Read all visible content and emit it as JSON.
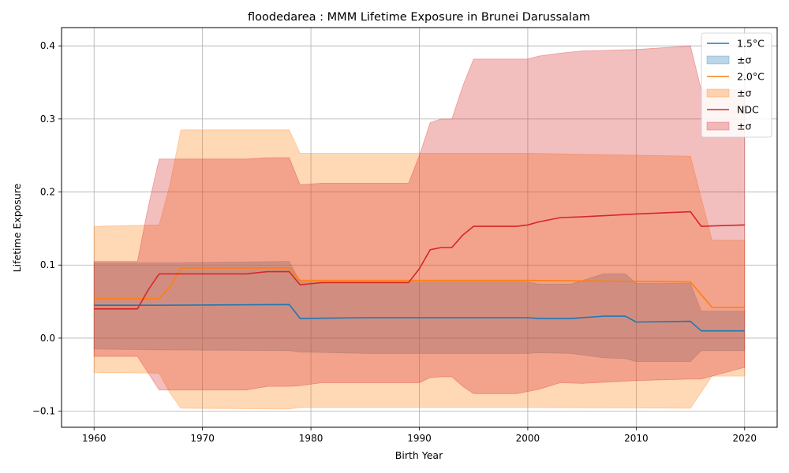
{
  "chart_data": {
    "type": "area",
    "title": "floodedarea : MMM Lifetime Exposure in Brunei Darussalam",
    "xlabel": "Birth Year",
    "ylabel": "Lifetime Exposure",
    "xlim": [
      1957,
      2023
    ],
    "ylim": [
      -0.122,
      0.425
    ],
    "xticks": [
      1960,
      1970,
      1980,
      1990,
      2000,
      2010,
      2020
    ],
    "yticks": [
      -0.1,
      0.0,
      0.1,
      0.2,
      0.3,
      0.4
    ],
    "xtick_labels": [
      "1960",
      "1970",
      "1980",
      "1990",
      "2000",
      "2010",
      "2020"
    ],
    "ytick_labels": [
      "−0.1",
      "0.0",
      "0.1",
      "0.2",
      "0.3",
      "0.4"
    ],
    "grid": true,
    "legend_position": "top-right",
    "series": [
      {
        "name": "1.5°C",
        "band_label": "±σ",
        "color": "#1f77b4",
        "x": [
          1960,
          1966,
          1978,
          1979,
          1985,
          2000,
          2001,
          2004,
          2007,
          2009,
          2010,
          2015,
          2016,
          2020
        ],
        "y": [
          0.045,
          0.045,
          0.046,
          0.027,
          0.028,
          0.028,
          0.027,
          0.027,
          0.03,
          0.03,
          0.022,
          0.023,
          0.01,
          0.01
        ],
        "upper": [
          0.103,
          0.103,
          0.105,
          0.077,
          0.077,
          0.077,
          0.074,
          0.074,
          0.088,
          0.088,
          0.075,
          0.075,
          0.037,
          0.037
        ],
        "lower": [
          -0.015,
          -0.016,
          -0.017,
          -0.019,
          -0.021,
          -0.021,
          -0.02,
          -0.021,
          -0.027,
          -0.028,
          -0.032,
          -0.032,
          -0.017,
          -0.017
        ]
      },
      {
        "name": "2.0°C",
        "band_label": "±σ",
        "color": "#ff7f0e",
        "x": [
          1960,
          1966,
          1967,
          1968,
          1978,
          1979,
          2000,
          2015,
          2017,
          2020
        ],
        "y": [
          0.054,
          0.054,
          0.07,
          0.096,
          0.096,
          0.079,
          0.079,
          0.077,
          0.042,
          0.042
        ],
        "upper": [
          0.153,
          0.155,
          0.21,
          0.285,
          0.285,
          0.253,
          0.253,
          0.249,
          0.134,
          0.134
        ],
        "lower": [
          -0.047,
          -0.048,
          -0.075,
          -0.096,
          -0.097,
          -0.095,
          -0.095,
          -0.096,
          -0.052,
          -0.052
        ]
      },
      {
        "name": "NDC",
        "band_label": "±σ",
        "color": "#d62728",
        "x": [
          1960,
          1964,
          1965,
          1966,
          1974,
          1976,
          1978,
          1979,
          1981,
          1989,
          1990,
          1991,
          1992,
          1993,
          1994,
          1995,
          1999,
          2000,
          2001,
          2003,
          2005,
          2010,
          2015,
          2016,
          2020
        ],
        "y": [
          0.04,
          0.04,
          0.066,
          0.088,
          0.088,
          0.091,
          0.091,
          0.073,
          0.076,
          0.076,
          0.095,
          0.121,
          0.124,
          0.124,
          0.141,
          0.153,
          0.153,
          0.155,
          0.159,
          0.165,
          0.166,
          0.17,
          0.173,
          0.153,
          0.155
        ],
        "upper": [
          0.105,
          0.105,
          0.18,
          0.245,
          0.245,
          0.247,
          0.247,
          0.21,
          0.212,
          0.212,
          0.25,
          0.295,
          0.3,
          0.3,
          0.345,
          0.382,
          0.382,
          0.382,
          0.386,
          0.39,
          0.393,
          0.395,
          0.4,
          0.34,
          0.34
        ],
        "lower": [
          -0.025,
          -0.025,
          -0.048,
          -0.071,
          -0.071,
          -0.066,
          -0.066,
          -0.065,
          -0.061,
          -0.061,
          -0.061,
          -0.054,
          -0.053,
          -0.053,
          -0.066,
          -0.076,
          -0.076,
          -0.073,
          -0.07,
          -0.061,
          -0.062,
          -0.058,
          -0.056,
          -0.056,
          -0.04
        ]
      }
    ]
  }
}
